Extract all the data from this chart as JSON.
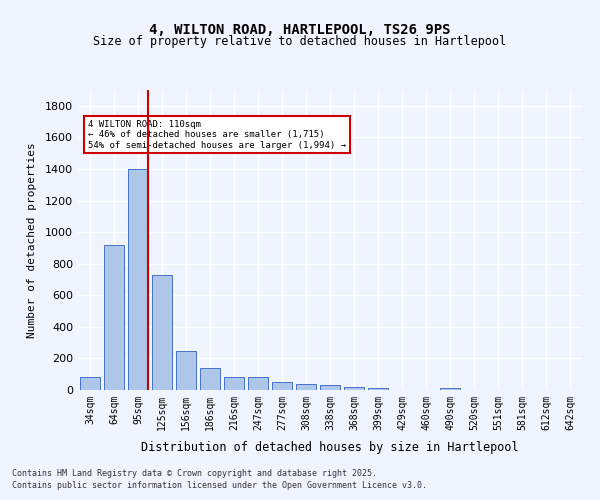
{
  "title_line1": "4, WILTON ROAD, HARTLEPOOL, TS26 9PS",
  "title_line2": "Size of property relative to detached houses in Hartlepool",
  "xlabel": "Distribution of detached houses by size in Hartlepool",
  "ylabel": "Number of detached properties",
  "categories": [
    "34sqm",
    "64sqm",
    "95sqm",
    "125sqm",
    "156sqm",
    "186sqm",
    "216sqm",
    "247sqm",
    "277sqm",
    "308sqm",
    "338sqm",
    "368sqm",
    "399sqm",
    "429sqm",
    "460sqm",
    "490sqm",
    "520sqm",
    "551sqm",
    "581sqm",
    "612sqm",
    "642sqm"
  ],
  "values": [
    80,
    920,
    1400,
    730,
    245,
    140,
    85,
    80,
    50,
    35,
    30,
    20,
    10,
    0,
    0,
    15,
    0,
    0,
    0,
    0,
    0
  ],
  "bar_color": "#aec6e8",
  "bar_edge_color": "#4472c4",
  "background_color": "#f0f4ff",
  "grid_color": "#ffffff",
  "vline_x": 2,
  "vline_color": "#cc0000",
  "annotation_text": "4 WILTON ROAD: 110sqm\n← 46% of detached houses are smaller (1,715)\n54% of semi-detached houses are larger (1,994) →",
  "annotation_box_color": "#cc0000",
  "ylim": [
    0,
    1900
  ],
  "yticks": [
    0,
    200,
    400,
    600,
    800,
    1000,
    1200,
    1400,
    1600,
    1800
  ],
  "footer_line1": "Contains HM Land Registry data © Crown copyright and database right 2025.",
  "footer_line2": "Contains public sector information licensed under the Open Government Licence v3.0."
}
